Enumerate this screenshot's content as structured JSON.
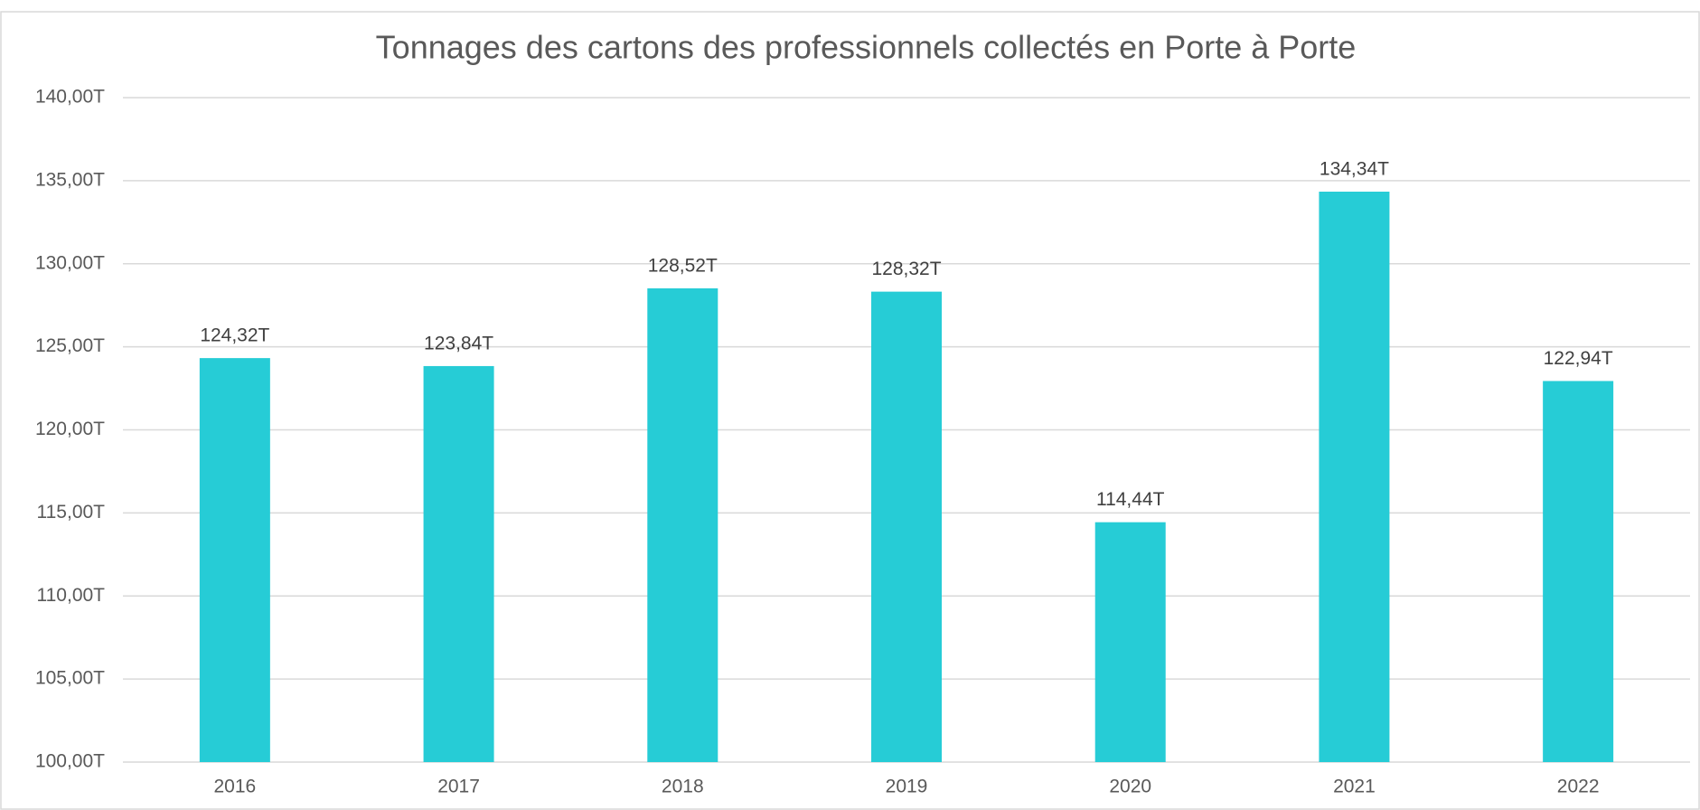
{
  "chart_data": {
    "type": "bar",
    "title": "Tonnages des cartons des professionnels collectés en Porte à Porte",
    "categories": [
      "2016",
      "2017",
      "2018",
      "2019",
      "2020",
      "2021",
      "2022"
    ],
    "values": [
      124.32,
      123.84,
      128.52,
      128.32,
      114.44,
      134.34,
      122.94
    ],
    "value_labels": [
      "124,32T",
      "123,84T",
      "128,52T",
      "128,32T",
      "114,44T",
      "134,34T",
      "122,94T"
    ],
    "color": "#26ccd6",
    "ylim": [
      100,
      140
    ],
    "yticks": [
      {
        "value": 100,
        "label": "100,00T"
      },
      {
        "value": 105,
        "label": "105,00T"
      },
      {
        "value": 110,
        "label": "110,00T"
      },
      {
        "value": 115,
        "label": "115,00T"
      },
      {
        "value": 120,
        "label": "120,00T"
      },
      {
        "value": 125,
        "label": "125,00T"
      },
      {
        "value": 130,
        "label": "130,00T"
      },
      {
        "value": 135,
        "label": "135,00T"
      },
      {
        "value": 140,
        "label": "140,00T"
      }
    ],
    "grid": true
  }
}
